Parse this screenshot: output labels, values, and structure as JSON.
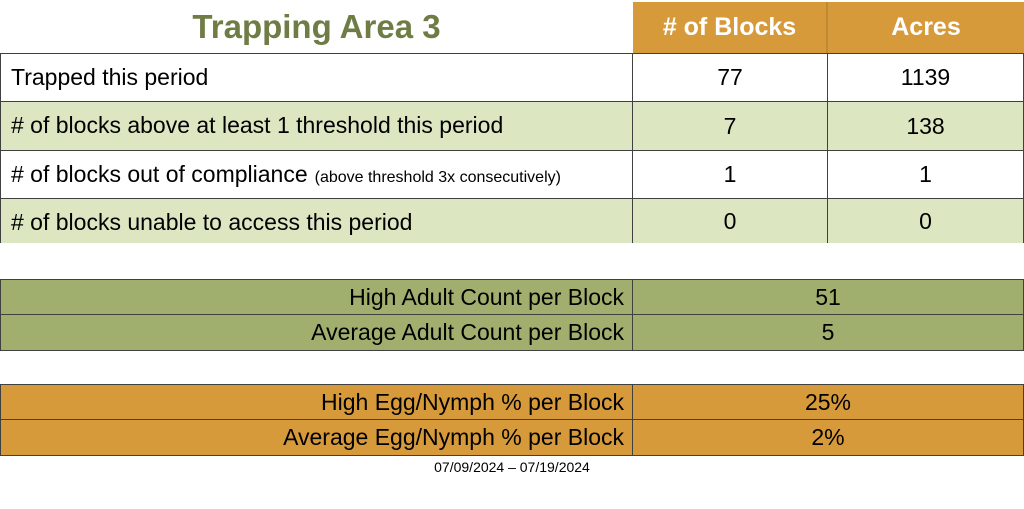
{
  "title": "Trapping Area 3",
  "header": {
    "col_blocks": "# of Blocks",
    "col_acres": "Acres"
  },
  "main_table": {
    "rows": [
      {
        "label": "Trapped this period",
        "note": "",
        "blocks": "77",
        "acres": "1139"
      },
      {
        "label": "# of blocks above at least 1 threshold this period",
        "note": "",
        "blocks": "7",
        "acres": "138"
      },
      {
        "label": "# of blocks out of compliance",
        "note": "(above threshold 3x consecutively)",
        "blocks": "1",
        "acres": "1"
      },
      {
        "label": "# of blocks unable to access this period",
        "note": "",
        "blocks": "0",
        "acres": "0"
      }
    ]
  },
  "adult_section": {
    "rows": [
      {
        "label": "High Adult Count per Block",
        "value": "51"
      },
      {
        "label": "Average Adult Count per Block",
        "value": "5"
      }
    ]
  },
  "egg_section": {
    "rows": [
      {
        "label": "High Egg/Nymph % per Block",
        "value": "25%"
      },
      {
        "label": "Average Egg/Nymph % per Block",
        "value": "2%"
      }
    ]
  },
  "footer": {
    "date_range": "07/09/2024 – 07/19/2024"
  },
  "colors": {
    "header_orange": "#D79A3B",
    "row_light_green": "#DCE7C2",
    "adult_sage_green": "#A0AE6E",
    "egg_orange": "#D79A3B",
    "title_green": "#6F7C45",
    "grid_border": "#404040"
  }
}
